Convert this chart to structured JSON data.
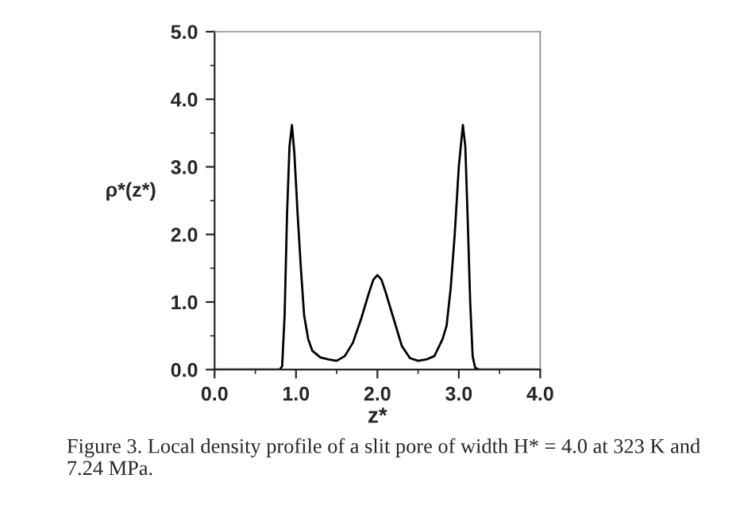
{
  "chart_data": {
    "type": "line",
    "xlabel": "z*",
    "ylabel": "ρ*(z*)",
    "x": [
      0,
      0.8,
      0.83,
      0.86,
      0.89,
      0.92,
      0.95,
      0.98,
      1.02,
      1.06,
      1.1,
      1.15,
      1.2,
      1.3,
      1.4,
      1.5,
      1.6,
      1.7,
      1.8,
      1.9,
      1.95,
      2.0,
      2.05,
      2.1,
      2.2,
      2.3,
      2.4,
      2.5,
      2.6,
      2.7,
      2.8,
      2.85,
      2.9,
      2.95,
      3.0,
      3.05,
      3.08,
      3.11,
      3.14,
      3.17,
      3.2,
      3.25,
      4.0
    ],
    "series": [
      {
        "color": "#000000",
        "values": [
          0,
          0,
          0.05,
          0.8,
          2.3,
          3.3,
          3.62,
          3.2,
          2.3,
          1.5,
          0.8,
          0.45,
          0.28,
          0.18,
          0.15,
          0.13,
          0.2,
          0.4,
          0.75,
          1.15,
          1.33,
          1.4,
          1.33,
          1.15,
          0.75,
          0.35,
          0.17,
          0.13,
          0.15,
          0.2,
          0.45,
          0.65,
          1.2,
          2.0,
          3.0,
          3.62,
          3.3,
          2.2,
          1.0,
          0.2,
          0.03,
          0,
          0
        ]
      }
    ],
    "xlim": [
      0,
      4
    ],
    "ylim": [
      0,
      5
    ],
    "xticks": [
      {
        "value": 0,
        "label": "0.0"
      },
      {
        "value": 1,
        "label": "1.0"
      },
      {
        "value": 2,
        "label": "2.0"
      },
      {
        "value": 3,
        "label": "3.0"
      },
      {
        "value": 4,
        "label": "4.0"
      }
    ],
    "yticks": [
      {
        "value": 0,
        "label": "0.0"
      },
      {
        "value": 1,
        "label": "1.0"
      },
      {
        "value": 2,
        "label": "2.0"
      },
      {
        "value": 3,
        "label": "3.0"
      },
      {
        "value": 4,
        "label": "4.0"
      },
      {
        "value": 5,
        "label": "5.0"
      }
    ],
    "grid": false,
    "legend": false,
    "marker": "none",
    "line_style": "solid",
    "annotations": [
      "Figure 3. Local density profile of a slit pore of width H* = 4.0 at 323 K and 7.24 MPa."
    ]
  }
}
